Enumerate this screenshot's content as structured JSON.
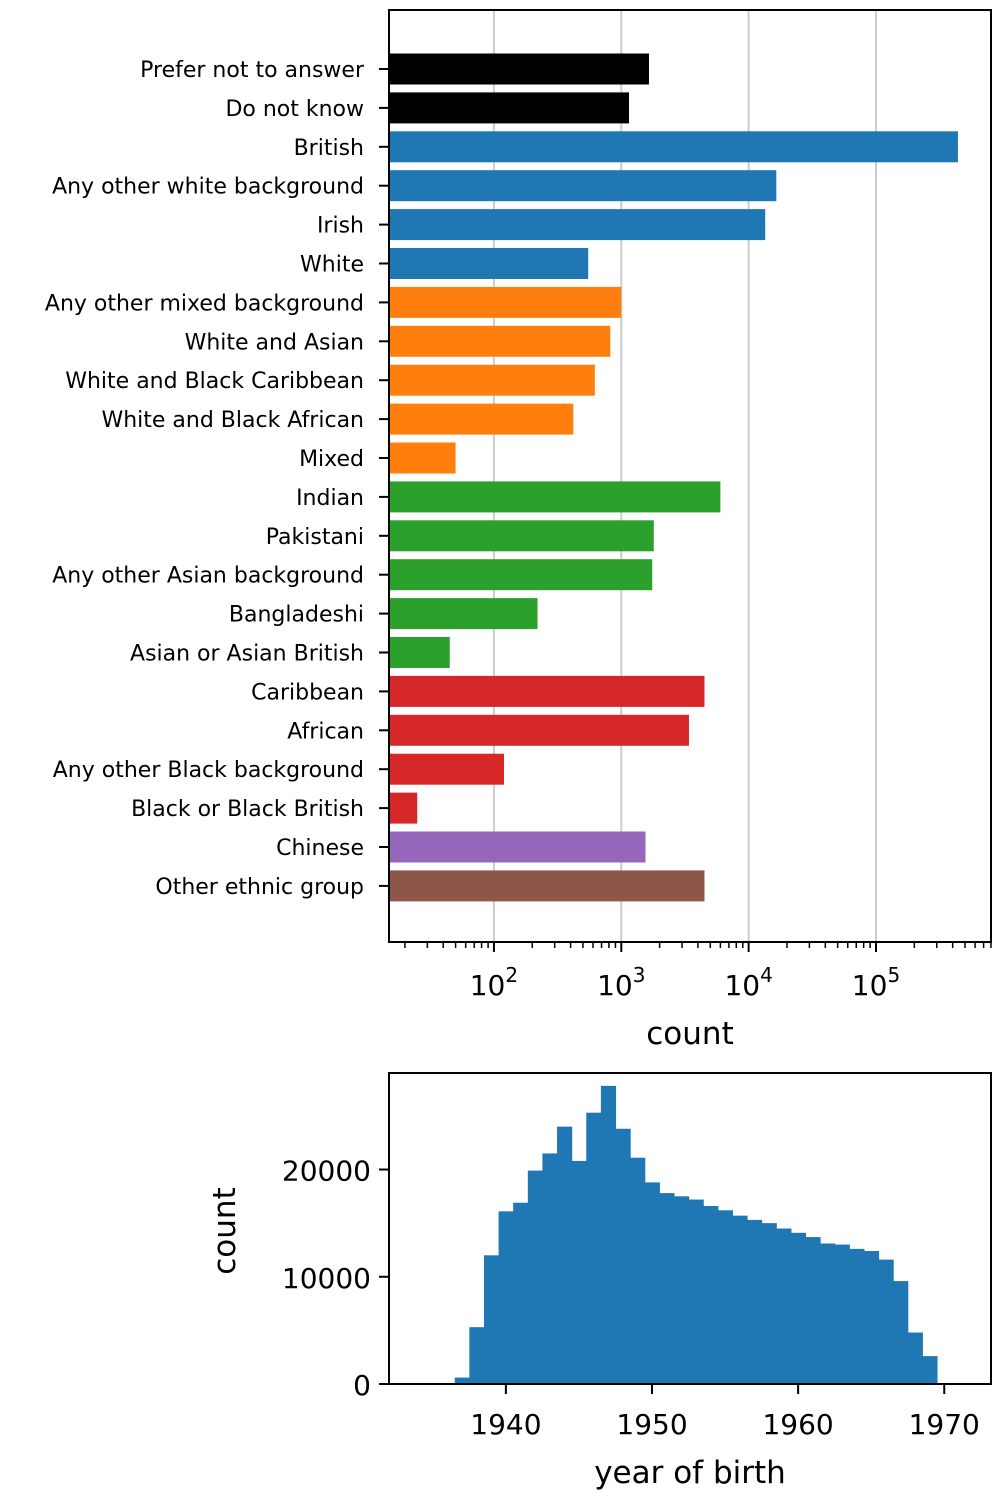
{
  "chart_data": [
    {
      "type": "bar",
      "orientation": "horizontal",
      "x_scale": "log",
      "xlim": [
        15,
        800000
      ],
      "xticks": [
        {
          "value": 100,
          "base": "10",
          "exp": "2"
        },
        {
          "value": 1000,
          "base": "10",
          "exp": "3"
        },
        {
          "value": 10000,
          "base": "10",
          "exp": "4"
        },
        {
          "value": 100000,
          "base": "10",
          "exp": "5"
        }
      ],
      "xlabel": "count",
      "grid": "x-major",
      "categories": [
        {
          "label": "Prefer not to answer",
          "value": 1650,
          "color": "#000000"
        },
        {
          "label": "Do not know",
          "value": 1150,
          "color": "#000000"
        },
        {
          "label": "British",
          "value": 440000,
          "color": "#1f77b4"
        },
        {
          "label": "Any other white background",
          "value": 16500,
          "color": "#1f77b4"
        },
        {
          "label": "Irish",
          "value": 13500,
          "color": "#1f77b4"
        },
        {
          "label": "White",
          "value": 550,
          "color": "#1f77b4"
        },
        {
          "label": "Any other mixed background",
          "value": 1000,
          "color": "#ff7f0e"
        },
        {
          "label": "White and Asian",
          "value": 820,
          "color": "#ff7f0e"
        },
        {
          "label": "White and Black Caribbean",
          "value": 620,
          "color": "#ff7f0e"
        },
        {
          "label": "White and Black African",
          "value": 420,
          "color": "#ff7f0e"
        },
        {
          "label": "Mixed",
          "value": 50,
          "color": "#ff7f0e"
        },
        {
          "label": "Indian",
          "value": 6000,
          "color": "#2ca02c"
        },
        {
          "label": "Pakistani",
          "value": 1800,
          "color": "#2ca02c"
        },
        {
          "label": "Any other Asian background",
          "value": 1750,
          "color": "#2ca02c"
        },
        {
          "label": "Bangladeshi",
          "value": 220,
          "color": "#2ca02c"
        },
        {
          "label": "Asian or Asian British",
          "value": 45,
          "color": "#2ca02c"
        },
        {
          "label": "Caribbean",
          "value": 4500,
          "color": "#d62728"
        },
        {
          "label": "African",
          "value": 3400,
          "color": "#d62728"
        },
        {
          "label": "Any other Black background",
          "value": 120,
          "color": "#d62728"
        },
        {
          "label": "Black or Black British",
          "value": 25,
          "color": "#d62728"
        },
        {
          "label": "Chinese",
          "value": 1550,
          "color": "#9467bd"
        },
        {
          "label": "Other ethnic group",
          "value": 4500,
          "color": "#8c564b"
        }
      ]
    },
    {
      "type": "bar",
      "subtype": "histogram",
      "xlabel": "year of birth",
      "ylabel": "count",
      "xlim": [
        1932,
        1973.2
      ],
      "ylim": [
        0,
        29000
      ],
      "xticks": [
        1940,
        1950,
        1960,
        1970
      ],
      "yticks": [
        0,
        10000,
        20000
      ],
      "color": "#1f77b4",
      "bin_edges": [
        1936.5,
        1937.5,
        1938.5,
        1939.5,
        1940.5,
        1941.5,
        1942.5,
        1943.5,
        1944.5,
        1945.5,
        1946.5,
        1947.5,
        1948.5,
        1949.5,
        1950.5,
        1951.5,
        1952.5,
        1953.5,
        1954.5,
        1955.5,
        1956.5,
        1957.5,
        1958.5,
        1959.5,
        1960.5,
        1961.5,
        1962.5,
        1963.5,
        1964.5,
        1965.5,
        1966.5,
        1967.5,
        1968.5,
        1969.5
      ],
      "counts": [
        600,
        5300,
        12000,
        16100,
        16900,
        19900,
        21500,
        24000,
        20800,
        25300,
        27800,
        23800,
        21100,
        18800,
        17800,
        17500,
        17200,
        16600,
        16200,
        15700,
        15300,
        15000,
        14500,
        14100,
        13700,
        13100,
        13000,
        12600,
        12400,
        11600,
        9600,
        4800,
        2600
      ]
    }
  ]
}
